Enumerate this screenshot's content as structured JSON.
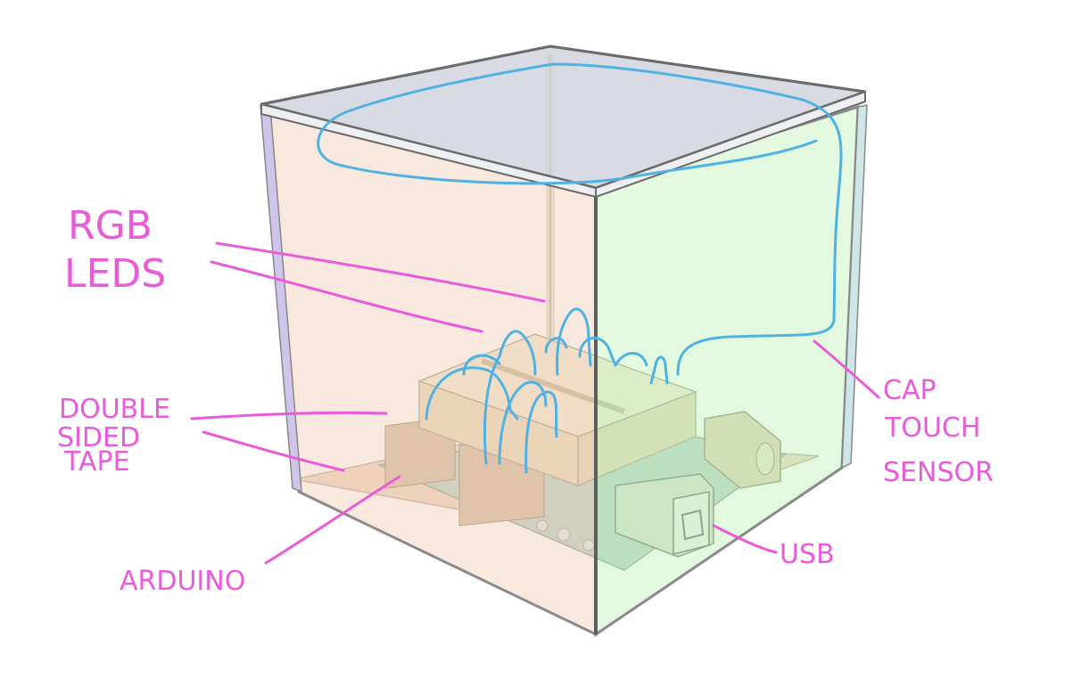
{
  "labels": {
    "rgb_leds": [
      "RGB",
      "LEDS"
    ],
    "double_sided_tape": [
      "DOUBLE",
      "SIDED",
      "TAPE"
    ],
    "arduino": "ARDUINO",
    "cap_touch_sensor": [
      "CAP",
      "TOUCH",
      "SENSOR"
    ],
    "usb": "USB"
  },
  "colors": {
    "annotation": "#e95bd8",
    "touch_wire": "#4fb2e3",
    "left_panel": "#f2d5c3",
    "right_panel": "#caf3c5",
    "lid": "#d6d8e2",
    "frame": "#6b6b6b"
  }
}
